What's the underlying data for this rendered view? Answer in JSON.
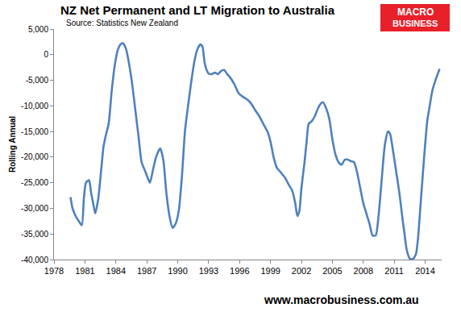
{
  "chart_data": {
    "type": "line",
    "title": "NZ Net Permanent and LT Migration to Australia",
    "subtitle": "Source: Statistics New Zealand",
    "y_label": "Rolling Annual",
    "annotations": [
      "MACRO",
      "BUSINESS",
      "www.macrobusiness.com.au"
    ],
    "color": "#4f81bd",
    "grid": false,
    "xlim": [
      1978,
      2015.6
    ],
    "xticks": [
      1978,
      1981,
      1984,
      1987,
      1990,
      1993,
      1996,
      1999,
      2002,
      2005,
      2008,
      2011,
      2014
    ],
    "ylim": [
      -40000,
      5000
    ],
    "yticks": [
      {
        "value": -40000,
        "label": "-40,000"
      },
      {
        "value": -35000,
        "label": "-35,000"
      },
      {
        "value": -30000,
        "label": "-30,000"
      },
      {
        "value": -25000,
        "label": "-25,000"
      },
      {
        "value": -20000,
        "label": "-20,000"
      },
      {
        "value": -15000,
        "label": "-15,000"
      },
      {
        "value": -10000,
        "label": "-10,000"
      },
      {
        "value": -5000,
        "label": "-5,000"
      },
      0,
      {
        "value": 5000,
        "label": "5,000"
      }
    ],
    "x": [
      1979.6,
      1979.8,
      1980.1,
      1980.4,
      1980.7,
      1980.9,
      1981.1,
      1981.4,
      1981.6,
      1981.8,
      1982.0,
      1982.3,
      1982.6,
      1982.8,
      1983.0,
      1983.3,
      1983.6,
      1983.9,
      1984.2,
      1984.5,
      1984.7,
      1985.0,
      1985.3,
      1985.6,
      1985.9,
      1986.2,
      1986.5,
      1986.9,
      1987.3,
      1987.6,
      1987.9,
      1988.3,
      1988.6,
      1988.9,
      1989.2,
      1989.5,
      1989.8,
      1990.1,
      1990.4,
      1990.7,
      1991.0,
      1991.3,
      1991.6,
      1991.9,
      1992.2,
      1992.4,
      1992.6,
      1992.8,
      1993.0,
      1993.3,
      1993.6,
      1993.9,
      1994.2,
      1994.5,
      1994.8,
      1995.1,
      1995.5,
      1995.9,
      1996.3,
      1996.7,
      1997.1,
      1997.5,
      1997.9,
      1998.3,
      1998.7,
      1999.0,
      1999.3,
      1999.6,
      2000.0,
      2000.4,
      2000.8,
      2001.1,
      2001.4,
      2001.6,
      2001.8,
      2002.0,
      2002.3,
      2002.5,
      2002.7,
      2003.0,
      2003.3,
      2003.6,
      2003.9,
      2004.1,
      2004.4,
      2004.7,
      2005.0,
      2005.3,
      2005.6,
      2005.9,
      2006.2,
      2006.5,
      2006.8,
      2007.1,
      2007.4,
      2007.7,
      2008.0,
      2008.3,
      2008.6,
      2008.9,
      2009.2,
      2009.5,
      2009.8,
      2010.1,
      2010.4,
      2010.6,
      2010.9,
      2011.2,
      2011.5,
      2011.8,
      2012.0,
      2012.2,
      2012.5,
      2012.8,
      2013.1,
      2013.3,
      2013.6,
      2013.9,
      2014.2,
      2014.4,
      2014.7,
      2015.0,
      2015.4
    ],
    "values": [
      -27800,
      -30000,
      -31500,
      -32500,
      -33300,
      -28000,
      -25000,
      -24500,
      -27000,
      -29000,
      -31000,
      -28000,
      -22000,
      -18000,
      -16000,
      -13500,
      -7000,
      -2000,
      1000,
      2100,
      2200,
      1000,
      -2000,
      -6000,
      -11000,
      -16000,
      -21000,
      -23000,
      -25000,
      -22500,
      -20000,
      -18300,
      -20500,
      -27000,
      -31500,
      -33800,
      -33000,
      -30500,
      -24000,
      -15000,
      -10000,
      -5500,
      -1500,
      1000,
      2000,
      1600,
      -1500,
      -3000,
      -3700,
      -3800,
      -3500,
      -3800,
      -3200,
      -3000,
      -3800,
      -4500,
      -5800,
      -7500,
      -8200,
      -8700,
      -9500,
      -10800,
      -12000,
      -13500,
      -15000,
      -17000,
      -20000,
      -22000,
      -23000,
      -24000,
      -25500,
      -26500,
      -29000,
      -31500,
      -30500,
      -26000,
      -21000,
      -17000,
      -13500,
      -13000,
      -12000,
      -10500,
      -9500,
      -9300,
      -10500,
      -12500,
      -16500,
      -19500,
      -21000,
      -21500,
      -20500,
      -20500,
      -20800,
      -21000,
      -23000,
      -26000,
      -29000,
      -31000,
      -33000,
      -35300,
      -35300,
      -31000,
      -24000,
      -17500,
      -15000,
      -15500,
      -19000,
      -23000,
      -27000,
      -32000,
      -35000,
      -38000,
      -39800,
      -39900,
      -39000,
      -36000,
      -28000,
      -20000,
      -13000,
      -10500,
      -7000,
      -5000,
      -2800
    ]
  }
}
